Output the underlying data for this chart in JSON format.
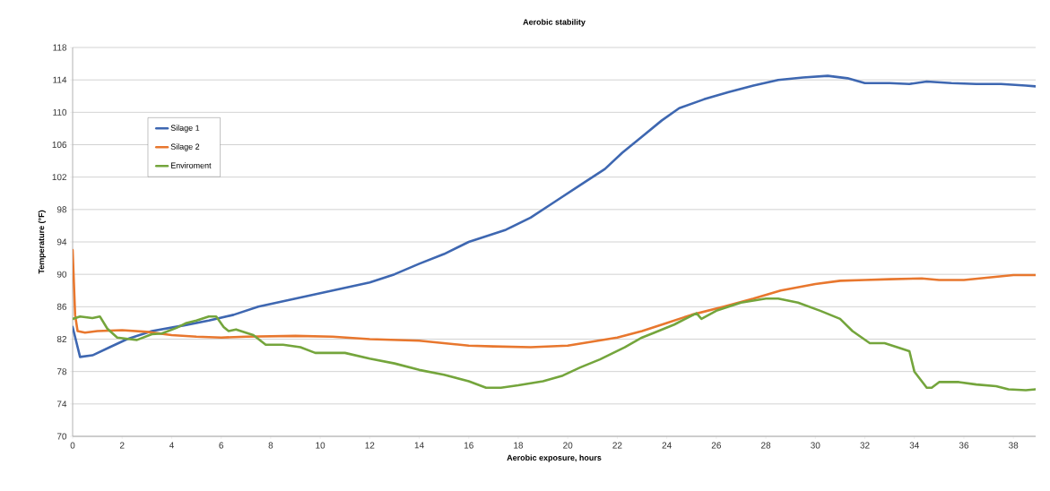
{
  "chart_data": {
    "type": "line",
    "title": "Aerobic stability",
    "xlabel": "Aerobic exposure, hours",
    "ylabel": "Temperature (°F)",
    "xlim": [
      0,
      38.9
    ],
    "xticks": [
      0,
      2,
      4,
      6,
      8,
      10,
      12,
      14,
      16,
      18,
      20,
      22,
      24,
      26,
      28,
      30,
      32,
      34,
      36,
      38
    ],
    "ylim": [
      70,
      118
    ],
    "yticks": [
      70,
      74,
      78,
      82,
      86,
      90,
      94,
      98,
      102,
      106,
      110,
      114,
      118
    ],
    "grid": "y",
    "legend": "top left",
    "marker": "none",
    "line_style": "solid",
    "series": [
      {
        "name": "Silage 1",
        "color": "#3e67b1",
        "x": [
          0,
          0.3,
          0.8,
          1.5,
          2.2,
          3.2,
          4.5,
          5.5,
          6.5,
          7.5,
          9,
          10.5,
          12,
          13,
          14,
          15,
          16,
          17.5,
          18.5,
          19.5,
          20.5,
          21.5,
          22.2,
          23,
          23.8,
          24.5,
          25.5,
          26.5,
          27.5,
          28.5,
          29.5,
          30.5,
          31.3,
          32,
          33,
          33.8,
          34.5,
          35.5,
          36.5,
          37.5,
          38.5,
          38.9
        ],
        "values": [
          83.5,
          79.8,
          80,
          81,
          82,
          83,
          83.7,
          84.3,
          85,
          86,
          87,
          88,
          89,
          90,
          91.3,
          92.5,
          94,
          95.5,
          97,
          99,
          101,
          103,
          105,
          107,
          109,
          110.5,
          111.6,
          112.5,
          113.3,
          114,
          114.3,
          114.5,
          114.2,
          113.6,
          113.6,
          113.5,
          113.8,
          113.6,
          113.5,
          113.5,
          113.3,
          113.2
        ]
      },
      {
        "name": "Silage 2",
        "color": "#e8772e",
        "x": [
          0,
          0.1,
          0.2,
          0.5,
          1,
          2,
          3,
          4,
          5,
          6,
          7,
          9,
          10.5,
          12,
          14,
          15,
          16,
          17,
          18.5,
          20,
          21,
          22,
          23,
          24,
          25,
          26.3,
          27.5,
          28.6,
          30,
          31,
          32,
          33,
          34.3,
          35,
          36,
          37,
          38,
          38.9
        ],
        "values": [
          93,
          85,
          83,
          82.8,
          83,
          83.1,
          82.9,
          82.5,
          82.3,
          82.2,
          82.3,
          82.4,
          82.3,
          82,
          81.8,
          81.5,
          81.2,
          81.1,
          81,
          81.2,
          81.7,
          82.2,
          83,
          84,
          85,
          86,
          87,
          88,
          88.8,
          89.2,
          89.3,
          89.4,
          89.5,
          89.3,
          89.3,
          89.6,
          89.9,
          89.9
        ]
      },
      {
        "name": "Enviroment",
        "color": "#74a53c",
        "x": [
          0,
          0.3,
          0.8,
          1.1,
          1.4,
          1.8,
          2.3,
          2.6,
          3.2,
          3.6,
          4.2,
          4.6,
          5,
          5.5,
          5.8,
          6.1,
          6.3,
          6.6,
          7.3,
          7.8,
          8.5,
          9.2,
          9.8,
          10.5,
          11,
          12,
          13,
          14,
          15,
          16,
          16.7,
          17.3,
          18,
          19,
          19.8,
          20.5,
          21.3,
          22.3,
          23,
          23.5,
          24.3,
          25.2,
          25.4,
          26,
          27,
          28,
          28.5,
          29.3,
          30.2,
          31,
          31.5,
          32.2,
          32.8,
          33.5,
          33.8,
          34,
          34.5,
          34.7,
          35,
          35.8,
          36.5,
          37.3,
          37.8,
          38.5,
          38.9
        ],
        "values": [
          84.5,
          84.8,
          84.6,
          84.8,
          83.3,
          82.2,
          82,
          81.9,
          82.6,
          82.7,
          83.4,
          84,
          84.3,
          84.8,
          84.8,
          83.5,
          83,
          83.2,
          82.5,
          81.3,
          81.3,
          81,
          80.3,
          80.3,
          80.3,
          79.6,
          79,
          78.2,
          77.6,
          76.8,
          76,
          76,
          76.3,
          76.8,
          77.5,
          78.5,
          79.5,
          81,
          82.2,
          82.8,
          83.8,
          85.2,
          84.5,
          85.5,
          86.5,
          87,
          87,
          86.5,
          85.5,
          84.5,
          83,
          81.5,
          81.5,
          80.8,
          80.5,
          78,
          76,
          76,
          76.7,
          76.7,
          76.4,
          76.2,
          75.8,
          75.7,
          75.8
        ]
      }
    ]
  }
}
